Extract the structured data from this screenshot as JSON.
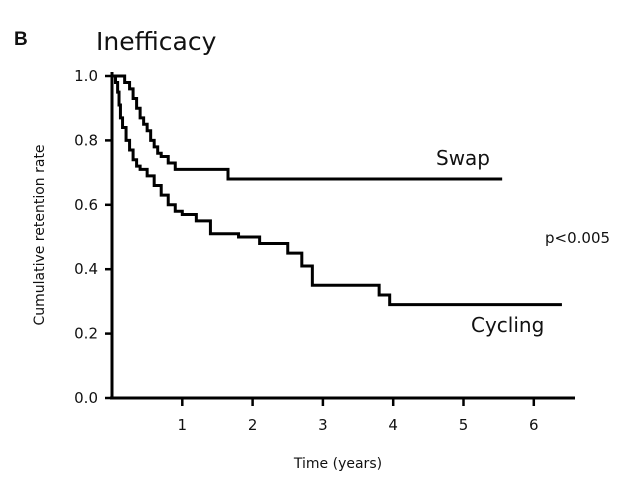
{
  "chart_data": {
    "type": "line",
    "panel_label": "B",
    "title": "Inefficacy",
    "xlabel": "Time (years)",
    "ylabel": "Cumulative retention rate",
    "xlim": [
      0,
      6.8
    ],
    "ylim": [
      0,
      1.0
    ],
    "x_ticks": [
      1,
      2,
      3,
      4,
      5,
      6
    ],
    "y_ticks": [
      "0.0",
      "0.2",
      "0.4",
      "0.6",
      "0.8",
      "1.0"
    ],
    "p_value_text": "p<0.005",
    "series": [
      {
        "name": "Swap",
        "x": [
          0,
          0.1,
          0.18,
          0.25,
          0.3,
          0.35,
          0.4,
          0.45,
          0.5,
          0.55,
          0.6,
          0.65,
          0.7,
          0.8,
          0.9,
          1.0,
          1.65,
          5.55
        ],
        "y": [
          1.0,
          1.0,
          0.98,
          0.96,
          0.93,
          0.9,
          0.87,
          0.85,
          0.83,
          0.8,
          0.78,
          0.76,
          0.75,
          0.73,
          0.71,
          0.71,
          0.68,
          0.68
        ]
      },
      {
        "name": "Cycling",
        "x": [
          0,
          0.05,
          0.08,
          0.1,
          0.12,
          0.15,
          0.2,
          0.25,
          0.3,
          0.35,
          0.4,
          0.5,
          0.6,
          0.7,
          0.8,
          0.9,
          1.0,
          1.2,
          1.4,
          1.8,
          2.1,
          2.5,
          2.7,
          2.85,
          3.8,
          3.95,
          6.4
        ],
        "y": [
          1.0,
          0.98,
          0.95,
          0.91,
          0.87,
          0.84,
          0.8,
          0.77,
          0.74,
          0.72,
          0.71,
          0.69,
          0.66,
          0.63,
          0.6,
          0.58,
          0.57,
          0.55,
          0.51,
          0.5,
          0.48,
          0.45,
          0.41,
          0.35,
          0.32,
          0.29,
          0.29
        ]
      }
    ],
    "annotations": [
      "Swap",
      "Cycling"
    ]
  }
}
